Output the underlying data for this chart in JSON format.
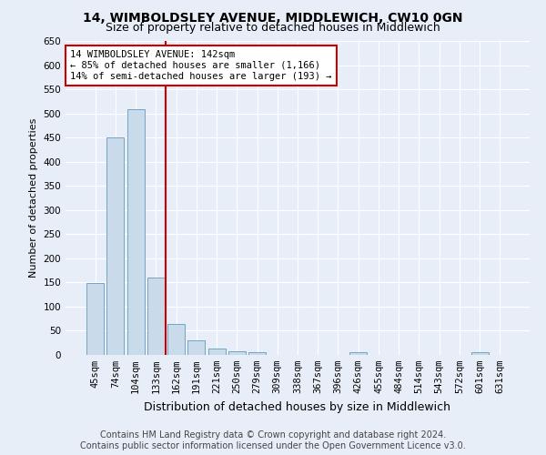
{
  "title": "14, WIMBOLDSLEY AVENUE, MIDDLEWICH, CW10 0GN",
  "subtitle": "Size of property relative to detached houses in Middlewich",
  "xlabel": "Distribution of detached houses by size in Middlewich",
  "ylabel": "Number of detached properties",
  "categories": [
    "45sqm",
    "74sqm",
    "104sqm",
    "133sqm",
    "162sqm",
    "191sqm",
    "221sqm",
    "250sqm",
    "279sqm",
    "309sqm",
    "338sqm",
    "367sqm",
    "396sqm",
    "426sqm",
    "455sqm",
    "484sqm",
    "514sqm",
    "543sqm",
    "572sqm",
    "601sqm",
    "631sqm"
  ],
  "values": [
    148,
    450,
    508,
    160,
    65,
    30,
    13,
    8,
    5,
    0,
    0,
    0,
    0,
    5,
    0,
    0,
    0,
    0,
    0,
    5,
    0
  ],
  "bar_color": "#c9daea",
  "bar_edge_color": "#6699bb",
  "red_line_bar_index": 3,
  "red_line_color": "#cc0000",
  "ylim_max": 650,
  "yticks": [
    0,
    50,
    100,
    150,
    200,
    250,
    300,
    350,
    400,
    450,
    500,
    550,
    600,
    650
  ],
  "annotation_line1": "14 WIMBOLDSLEY AVENUE: 142sqm",
  "annotation_line2": "← 85% of detached houses are smaller (1,166)",
  "annotation_line3": "14% of semi-detached houses are larger (193) →",
  "annotation_box_facecolor": "#ffffff",
  "annotation_box_edgecolor": "#cc0000",
  "footer_line1": "Contains HM Land Registry data © Crown copyright and database right 2024.",
  "footer_line2": "Contains public sector information licensed under the Open Government Licence v3.0.",
  "bg_color": "#e8eef8",
  "grid_color": "#ffffff",
  "title_fontsize": 10,
  "subtitle_fontsize": 9,
  "ylabel_fontsize": 8,
  "xlabel_fontsize": 9,
  "tick_fontsize": 7.5,
  "annot_fontsize": 7.5,
  "footer_fontsize": 7
}
